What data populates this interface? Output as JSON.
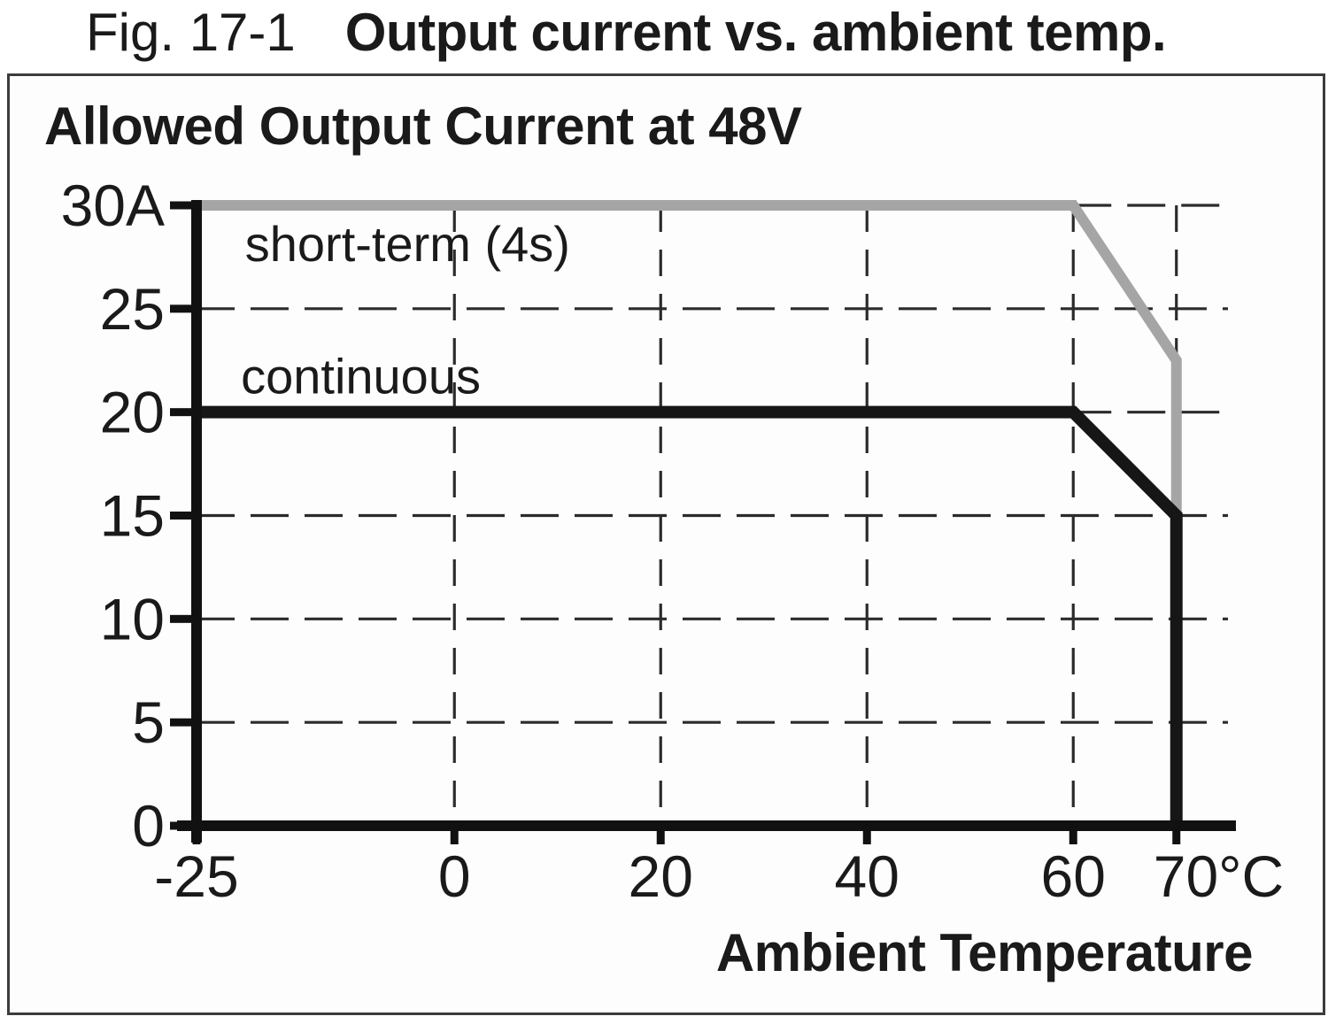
{
  "caption": {
    "prefix": "Fig. 17-1",
    "title": "Output current vs. ambient temp."
  },
  "page": {
    "panel_border": "#3c3c3c",
    "panel_background": "#fdfdfd",
    "text_color": "#1a1a1a",
    "grid_color": "#2b2b2b",
    "axis_color": "#111111"
  },
  "chart_data": {
    "type": "line",
    "title": "Allowed Output Current at 48V",
    "xlabel": "Ambient Temperature",
    "ylabel": "",
    "x_unit": "°C",
    "y_unit": "A",
    "xlim": [
      -25,
      75
    ],
    "ylim": [
      0,
      30
    ],
    "grid_on": true,
    "legend_position": "inline-labels",
    "x_ticks": [
      {
        "value": -25,
        "label": "-25"
      },
      {
        "value": 0,
        "label": "0"
      },
      {
        "value": 20,
        "label": "20"
      },
      {
        "value": 40,
        "label": "40"
      },
      {
        "value": 60,
        "label": "60"
      },
      {
        "value": 70,
        "label": "70°C"
      }
    ],
    "y_ticks": [
      {
        "value": 0,
        "label": "0"
      },
      {
        "value": 5,
        "label": "5"
      },
      {
        "value": 10,
        "label": "10"
      },
      {
        "value": 15,
        "label": "15"
      },
      {
        "value": 20,
        "label": "20"
      },
      {
        "value": 25,
        "label": "25"
      },
      {
        "value": 30,
        "label": "30A"
      }
    ],
    "gridlines": {
      "horizontal_full": [
        5,
        10,
        15,
        25
      ],
      "horizontal_partial": [
        {
          "y": 30,
          "x_from": 60,
          "x_to": 75
        },
        {
          "y": 20,
          "x_from": 60,
          "x_to": 75
        }
      ],
      "vertical": [
        0,
        20,
        40,
        60,
        70
      ]
    },
    "series": [
      {
        "name": "short-term (4s)",
        "color": "#a5a5a5",
        "stroke_width": 12,
        "points": [
          [
            -25,
            30
          ],
          [
            60,
            30
          ],
          [
            70,
            22.5
          ],
          [
            70,
            15
          ]
        ],
        "label_pos": [
          -20.3,
          27.3
        ]
      },
      {
        "name": "continuous",
        "color": "#161616",
        "stroke_width": 14,
        "points": [
          [
            -25,
            20
          ],
          [
            60,
            20
          ],
          [
            70,
            15
          ],
          [
            70,
            0
          ]
        ],
        "label_pos": [
          -20.7,
          20.9
        ]
      }
    ]
  }
}
